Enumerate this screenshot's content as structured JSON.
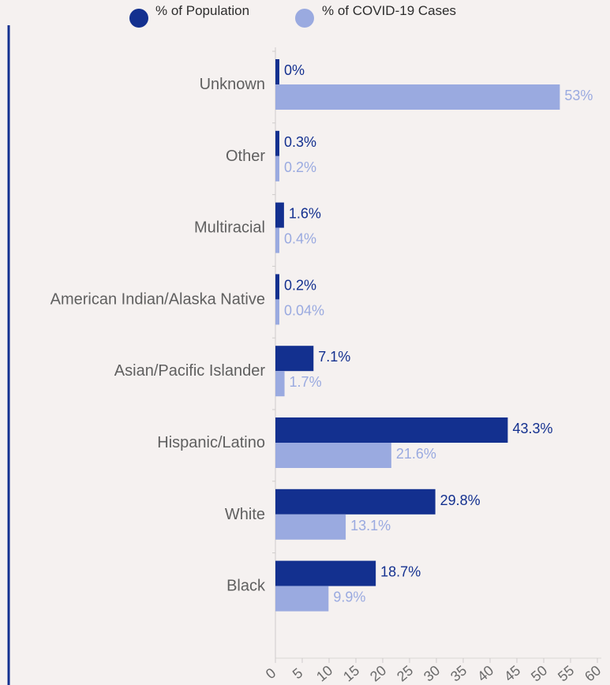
{
  "chart_data": {
    "type": "bar",
    "orientation": "horizontal",
    "categories": [
      "Unknown",
      "Other",
      "Multiracial",
      "American Indian/Alaska Native",
      "Asian/Pacific Islander",
      "Hispanic/Latino",
      "White",
      "Black"
    ],
    "series": [
      {
        "name": "% of Population",
        "color": "#13308f",
        "values": [
          0,
          0.3,
          1.6,
          0.2,
          7.1,
          43.3,
          29.8,
          18.7
        ],
        "labels": [
          "0%",
          "0.3%",
          "1.6%",
          "0.2%",
          "7.1%",
          "43.3%",
          "29.8%",
          "18.7%"
        ]
      },
      {
        "name": "% of COVID-19 Cases",
        "color": "#9aaae0",
        "values": [
          53,
          0.2,
          0.4,
          0.04,
          1.7,
          21.6,
          13.1,
          9.9
        ],
        "labels": [
          "53%",
          "0.2%",
          "0.4%",
          "0.04%",
          "1.7%",
          "21.6%",
          "13.1%",
          "9.9%"
        ]
      }
    ],
    "xlim": [
      0,
      60
    ],
    "xticks": [
      0,
      5,
      10,
      15,
      20,
      25,
      30,
      35,
      40,
      45,
      50,
      55,
      60
    ],
    "legend_position": "top",
    "grid": false
  }
}
